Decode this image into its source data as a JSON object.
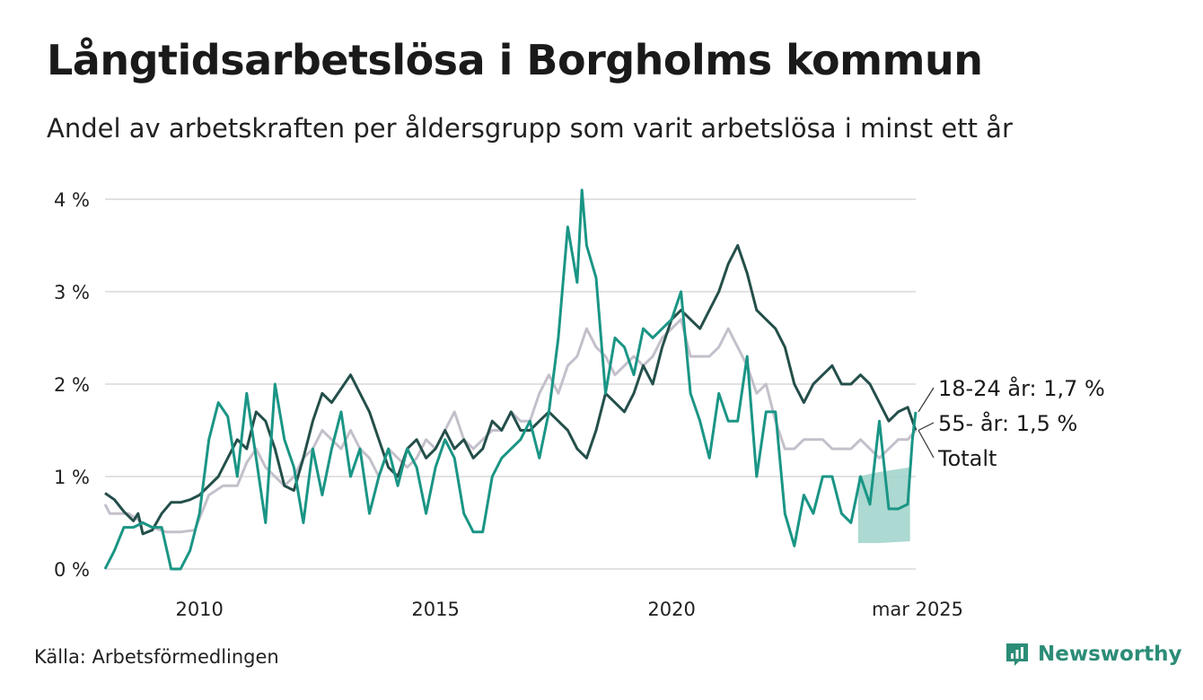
{
  "title": "Långtidsarbetslösa i Borgholms kommun",
  "subtitle": "Andel av arbetskraften per åldersgrupp som varit arbetslösa i minst ett år",
  "source": "Källa: Arbetsförmedlingen",
  "brand": "Newsworthy",
  "colors": {
    "total": "#c4c0cb",
    "age55": "#244f4a",
    "age1824": "#1a9585",
    "band": "#a3d5cc",
    "grid": "#e2e2e2"
  },
  "chart_data": {
    "type": "line",
    "x_range": [
      2008.0,
      2025.17
    ],
    "ylim": [
      0,
      4.2
    ],
    "y_ticks": [
      {
        "value": 0,
        "label": "0 %"
      },
      {
        "value": 1,
        "label": "1 %"
      },
      {
        "value": 2,
        "label": "2 %"
      },
      {
        "value": 3,
        "label": "3 %"
      },
      {
        "value": 4,
        "label": "4 %"
      }
    ],
    "x_ticks": [
      {
        "value": 2010,
        "label": "2010"
      },
      {
        "value": 2015,
        "label": "2015"
      },
      {
        "value": 2020,
        "label": "2020"
      },
      {
        "value": 2025.17,
        "label": "mar 2025"
      }
    ],
    "series": [
      {
        "name": "Totalt",
        "label": "Totalt",
        "points": [
          [
            2008.0,
            0.7
          ],
          [
            2008.1,
            0.6
          ],
          [
            2008.5,
            0.6
          ],
          [
            2008.8,
            0.5
          ],
          [
            2009.0,
            0.45
          ],
          [
            2009.3,
            0.4
          ],
          [
            2009.6,
            0.4
          ],
          [
            2009.9,
            0.42
          ],
          [
            2010.2,
            0.8
          ],
          [
            2010.5,
            0.9
          ],
          [
            2010.8,
            0.9
          ],
          [
            2011.0,
            1.15
          ],
          [
            2011.2,
            1.3
          ],
          [
            2011.4,
            1.1
          ],
          [
            2011.6,
            1.0
          ],
          [
            2011.8,
            0.9
          ],
          [
            2012.0,
            1.0
          ],
          [
            2012.2,
            1.2
          ],
          [
            2012.4,
            1.3
          ],
          [
            2012.6,
            1.5
          ],
          [
            2012.8,
            1.4
          ],
          [
            2013.0,
            1.3
          ],
          [
            2013.2,
            1.5
          ],
          [
            2013.4,
            1.3
          ],
          [
            2013.6,
            1.2
          ],
          [
            2013.8,
            1.0
          ],
          [
            2014.0,
            1.3
          ],
          [
            2014.2,
            1.2
          ],
          [
            2014.4,
            1.1
          ],
          [
            2014.6,
            1.2
          ],
          [
            2014.8,
            1.4
          ],
          [
            2015.0,
            1.3
          ],
          [
            2015.2,
            1.5
          ],
          [
            2015.4,
            1.7
          ],
          [
            2015.6,
            1.4
          ],
          [
            2015.8,
            1.3
          ],
          [
            2016.0,
            1.4
          ],
          [
            2016.2,
            1.5
          ],
          [
            2016.4,
            1.5
          ],
          [
            2016.6,
            1.7
          ],
          [
            2016.8,
            1.6
          ],
          [
            2017.0,
            1.6
          ],
          [
            2017.2,
            1.9
          ],
          [
            2017.4,
            2.1
          ],
          [
            2017.6,
            1.9
          ],
          [
            2017.8,
            2.2
          ],
          [
            2018.0,
            2.3
          ],
          [
            2018.2,
            2.6
          ],
          [
            2018.4,
            2.4
          ],
          [
            2018.6,
            2.3
          ],
          [
            2018.8,
            2.1
          ],
          [
            2019.0,
            2.2
          ],
          [
            2019.2,
            2.3
          ],
          [
            2019.4,
            2.2
          ],
          [
            2019.6,
            2.3
          ],
          [
            2019.8,
            2.5
          ],
          [
            2020.0,
            2.6
          ],
          [
            2020.2,
            2.7
          ],
          [
            2020.4,
            2.3
          ],
          [
            2020.6,
            2.3
          ],
          [
            2020.8,
            2.3
          ],
          [
            2021.0,
            2.4
          ],
          [
            2021.2,
            2.6
          ],
          [
            2021.4,
            2.4
          ],
          [
            2021.6,
            2.2
          ],
          [
            2021.8,
            1.9
          ],
          [
            2022.0,
            2.0
          ],
          [
            2022.2,
            1.6
          ],
          [
            2022.4,
            1.3
          ],
          [
            2022.6,
            1.3
          ],
          [
            2022.8,
            1.4
          ],
          [
            2023.0,
            1.4
          ],
          [
            2023.2,
            1.4
          ],
          [
            2023.4,
            1.3
          ],
          [
            2023.6,
            1.3
          ],
          [
            2023.8,
            1.3
          ],
          [
            2024.0,
            1.4
          ],
          [
            2024.2,
            1.3
          ],
          [
            2024.4,
            1.2
          ],
          [
            2024.6,
            1.3
          ],
          [
            2024.8,
            1.4
          ],
          [
            2025.0,
            1.4
          ],
          [
            2025.17,
            1.5
          ]
        ]
      },
      {
        "name": "55- år",
        "label": "55- år: 1,5 %",
        "points": [
          [
            2008.0,
            0.82
          ],
          [
            2008.2,
            0.75
          ],
          [
            2008.4,
            0.62
          ],
          [
            2008.6,
            0.52
          ],
          [
            2008.7,
            0.6
          ],
          [
            2008.8,
            0.38
          ],
          [
            2009.0,
            0.42
          ],
          [
            2009.2,
            0.6
          ],
          [
            2009.4,
            0.72
          ],
          [
            2009.6,
            0.72
          ],
          [
            2009.8,
            0.75
          ],
          [
            2010.0,
            0.8
          ],
          [
            2010.2,
            0.9
          ],
          [
            2010.4,
            1.0
          ],
          [
            2010.6,
            1.2
          ],
          [
            2010.8,
            1.4
          ],
          [
            2011.0,
            1.3
          ],
          [
            2011.2,
            1.7
          ],
          [
            2011.4,
            1.6
          ],
          [
            2011.6,
            1.3
          ],
          [
            2011.8,
            0.9
          ],
          [
            2012.0,
            0.85
          ],
          [
            2012.2,
            1.2
          ],
          [
            2012.4,
            1.6
          ],
          [
            2012.6,
            1.9
          ],
          [
            2012.8,
            1.8
          ],
          [
            2013.0,
            1.95
          ],
          [
            2013.2,
            2.1
          ],
          [
            2013.4,
            1.9
          ],
          [
            2013.6,
            1.7
          ],
          [
            2013.8,
            1.4
          ],
          [
            2014.0,
            1.1
          ],
          [
            2014.2,
            1.0
          ],
          [
            2014.4,
            1.3
          ],
          [
            2014.6,
            1.4
          ],
          [
            2014.8,
            1.2
          ],
          [
            2015.0,
            1.3
          ],
          [
            2015.2,
            1.5
          ],
          [
            2015.4,
            1.3
          ],
          [
            2015.6,
            1.4
          ],
          [
            2015.8,
            1.2
          ],
          [
            2016.0,
            1.3
          ],
          [
            2016.2,
            1.6
          ],
          [
            2016.4,
            1.5
          ],
          [
            2016.6,
            1.7
          ],
          [
            2016.8,
            1.5
          ],
          [
            2017.0,
            1.5
          ],
          [
            2017.2,
            1.6
          ],
          [
            2017.4,
            1.7
          ],
          [
            2017.6,
            1.6
          ],
          [
            2017.8,
            1.5
          ],
          [
            2018.0,
            1.3
          ],
          [
            2018.2,
            1.2
          ],
          [
            2018.4,
            1.5
          ],
          [
            2018.6,
            1.9
          ],
          [
            2018.8,
            1.8
          ],
          [
            2019.0,
            1.7
          ],
          [
            2019.2,
            1.9
          ],
          [
            2019.4,
            2.2
          ],
          [
            2019.6,
            2.0
          ],
          [
            2019.8,
            2.4
          ],
          [
            2020.0,
            2.7
          ],
          [
            2020.2,
            2.8
          ],
          [
            2020.4,
            2.7
          ],
          [
            2020.6,
            2.6
          ],
          [
            2020.8,
            2.8
          ],
          [
            2021.0,
            3.0
          ],
          [
            2021.2,
            3.3
          ],
          [
            2021.4,
            3.5
          ],
          [
            2021.6,
            3.2
          ],
          [
            2021.8,
            2.8
          ],
          [
            2022.0,
            2.7
          ],
          [
            2022.2,
            2.6
          ],
          [
            2022.4,
            2.4
          ],
          [
            2022.6,
            2.0
          ],
          [
            2022.8,
            1.8
          ],
          [
            2023.0,
            2.0
          ],
          [
            2023.2,
            2.1
          ],
          [
            2023.4,
            2.2
          ],
          [
            2023.6,
            2.0
          ],
          [
            2023.8,
            2.0
          ],
          [
            2024.0,
            2.1
          ],
          [
            2024.2,
            2.0
          ],
          [
            2024.4,
            1.8
          ],
          [
            2024.6,
            1.6
          ],
          [
            2024.8,
            1.7
          ],
          [
            2025.0,
            1.75
          ],
          [
            2025.17,
            1.5
          ]
        ]
      },
      {
        "name": "18-24 år",
        "label": "18-24 år: 1,7 %",
        "points": [
          [
            2008.0,
            0.0
          ],
          [
            2008.2,
            0.2
          ],
          [
            2008.4,
            0.45
          ],
          [
            2008.6,
            0.45
          ],
          [
            2008.8,
            0.5
          ],
          [
            2009.0,
            0.45
          ],
          [
            2009.2,
            0.45
          ],
          [
            2009.4,
            0.0
          ],
          [
            2009.6,
            0.0
          ],
          [
            2009.8,
            0.2
          ],
          [
            2010.0,
            0.6
          ],
          [
            2010.2,
            1.4
          ],
          [
            2010.4,
            1.8
          ],
          [
            2010.6,
            1.65
          ],
          [
            2010.8,
            1.0
          ],
          [
            2011.0,
            1.9
          ],
          [
            2011.2,
            1.2
          ],
          [
            2011.4,
            0.5
          ],
          [
            2011.6,
            2.0
          ],
          [
            2011.8,
            1.4
          ],
          [
            2012.0,
            1.1
          ],
          [
            2012.2,
            0.5
          ],
          [
            2012.4,
            1.3
          ],
          [
            2012.6,
            0.8
          ],
          [
            2012.8,
            1.3
          ],
          [
            2013.0,
            1.7
          ],
          [
            2013.2,
            1.0
          ],
          [
            2013.4,
            1.3
          ],
          [
            2013.6,
            0.6
          ],
          [
            2013.8,
            1.0
          ],
          [
            2014.0,
            1.3
          ],
          [
            2014.2,
            0.9
          ],
          [
            2014.4,
            1.3
          ],
          [
            2014.6,
            1.1
          ],
          [
            2014.8,
            0.6
          ],
          [
            2015.0,
            1.1
          ],
          [
            2015.2,
            1.4
          ],
          [
            2015.4,
            1.2
          ],
          [
            2015.6,
            0.6
          ],
          [
            2015.8,
            0.4
          ],
          [
            2016.0,
            0.4
          ],
          [
            2016.2,
            1.0
          ],
          [
            2016.4,
            1.2
          ],
          [
            2016.6,
            1.3
          ],
          [
            2016.8,
            1.4
          ],
          [
            2017.0,
            1.6
          ],
          [
            2017.2,
            1.2
          ],
          [
            2017.4,
            1.7
          ],
          [
            2017.6,
            2.5
          ],
          [
            2017.8,
            3.7
          ],
          [
            2018.0,
            3.1
          ],
          [
            2018.1,
            4.1
          ],
          [
            2018.2,
            3.5
          ],
          [
            2018.4,
            3.15
          ],
          [
            2018.6,
            1.9
          ],
          [
            2018.8,
            2.5
          ],
          [
            2019.0,
            2.4
          ],
          [
            2019.2,
            2.1
          ],
          [
            2019.4,
            2.6
          ],
          [
            2019.6,
            2.5
          ],
          [
            2019.8,
            2.6
          ],
          [
            2020.0,
            2.7
          ],
          [
            2020.2,
            3.0
          ],
          [
            2020.4,
            1.9
          ],
          [
            2020.6,
            1.6
          ],
          [
            2020.8,
            1.2
          ],
          [
            2021.0,
            1.9
          ],
          [
            2021.2,
            1.6
          ],
          [
            2021.4,
            1.6
          ],
          [
            2021.6,
            2.3
          ],
          [
            2021.8,
            1.0
          ],
          [
            2022.0,
            1.7
          ],
          [
            2022.2,
            1.7
          ],
          [
            2022.4,
            0.6
          ],
          [
            2022.6,
            0.25
          ],
          [
            2022.8,
            0.8
          ],
          [
            2023.0,
            0.6
          ],
          [
            2023.2,
            1.0
          ],
          [
            2023.4,
            1.0
          ],
          [
            2023.6,
            0.6
          ],
          [
            2023.8,
            0.5
          ],
          [
            2024.0,
            1.0
          ],
          [
            2024.2,
            0.7
          ],
          [
            2024.4,
            1.6
          ],
          [
            2024.6,
            0.65
          ],
          [
            2024.8,
            0.65
          ],
          [
            2025.0,
            0.7
          ],
          [
            2025.1,
            1.4
          ],
          [
            2025.17,
            1.7
          ]
        ]
      }
    ],
    "uncertainty_band": {
      "series": "18-24 år",
      "upper": [
        [
          2023.95,
          1.0
        ],
        [
          2024.4,
          1.05
        ],
        [
          2025.05,
          1.1
        ]
      ],
      "lower": [
        [
          2023.95,
          0.28
        ],
        [
          2024.4,
          0.28
        ],
        [
          2025.05,
          0.3
        ]
      ]
    }
  }
}
